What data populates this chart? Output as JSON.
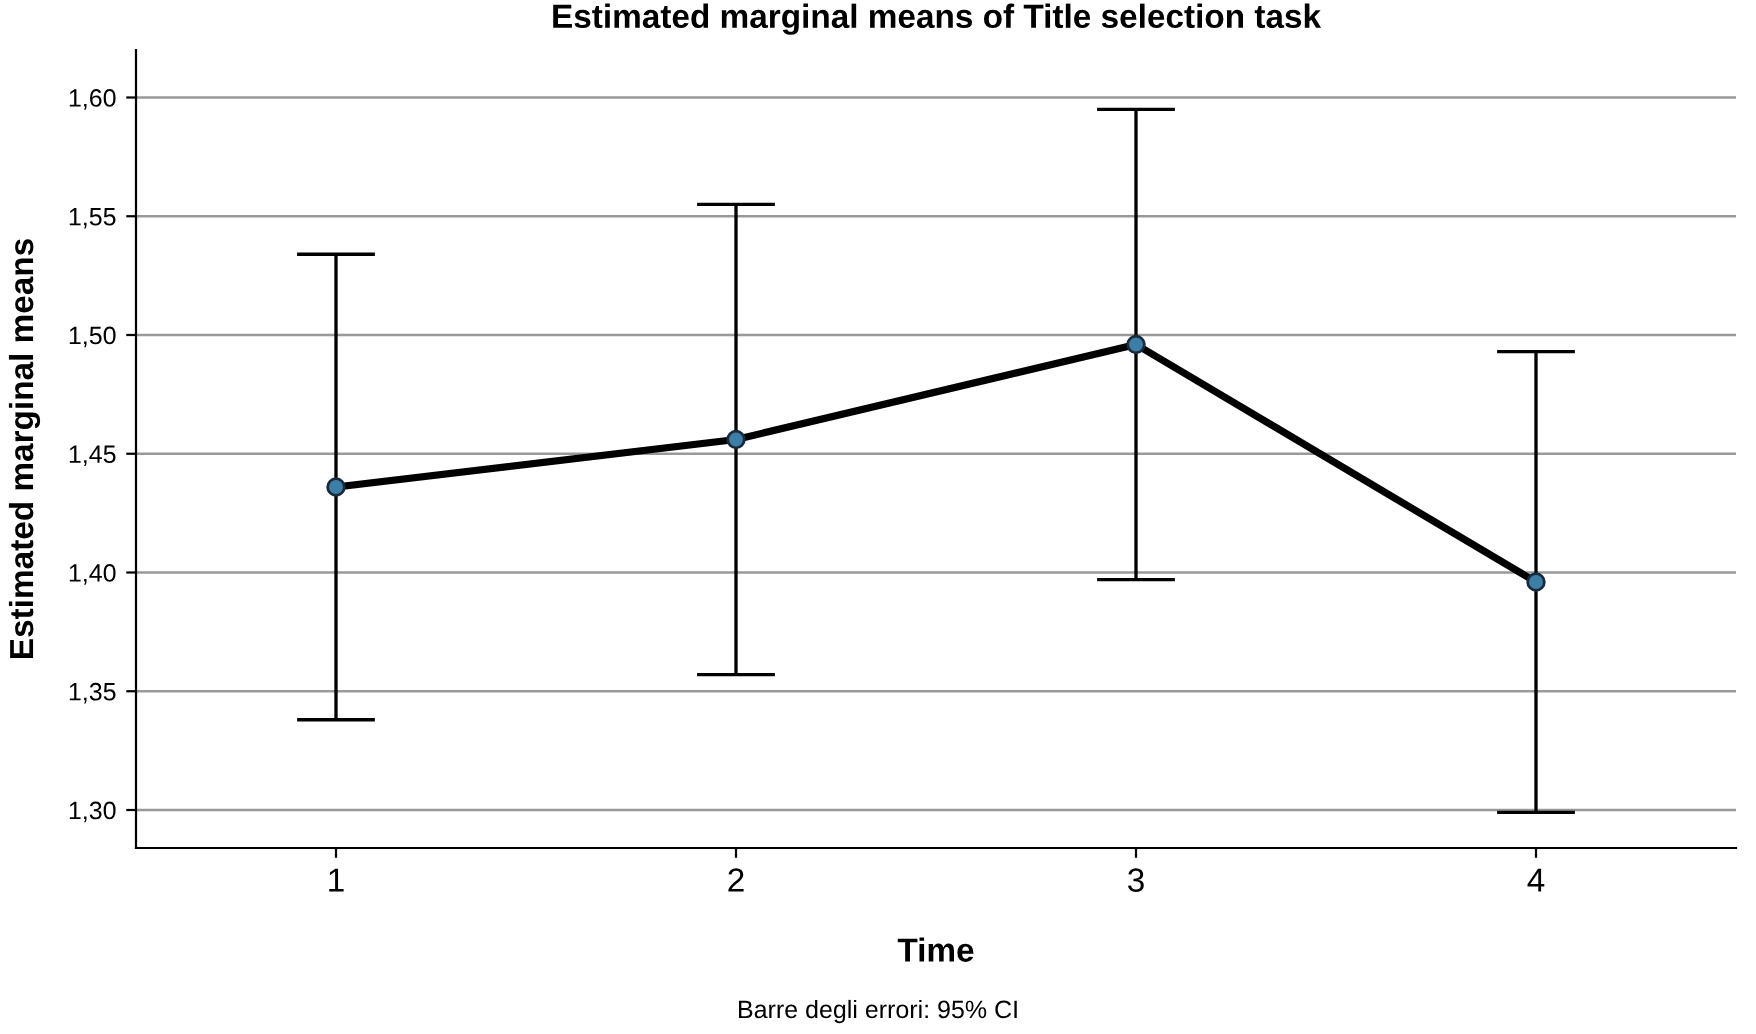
{
  "chart_data": {
    "type": "line",
    "title": "Estimated marginal means of Title selection task",
    "xlabel": "Time",
    "ylabel": "Estimated marginal means",
    "categories": [
      "1",
      "2",
      "3",
      "4"
    ],
    "series": [
      {
        "color": "#000000",
        "values": [
          1.436,
          1.456,
          1.496,
          1.396
        ],
        "errors": [
          0.098,
          0.099,
          0.099,
          0.097
        ]
      }
    ],
    "ylim": [
      1.284,
      1.62
    ],
    "yticks": [
      {
        "value": 1.3,
        "label": "1,30"
      },
      {
        "value": 1.35,
        "label": "1,35"
      },
      {
        "value": 1.4,
        "label": "1,40"
      },
      {
        "value": 1.45,
        "label": "1,45"
      },
      {
        "value": 1.5,
        "label": "1,50"
      },
      {
        "value": 1.55,
        "label": "1,55"
      },
      {
        "value": 1.6,
        "label": "1,60"
      }
    ],
    "grid": "y",
    "marker": "circle",
    "line_style": "solid",
    "legend": false,
    "annotations": [
      "Barre degli errori: 95% CI"
    ]
  }
}
